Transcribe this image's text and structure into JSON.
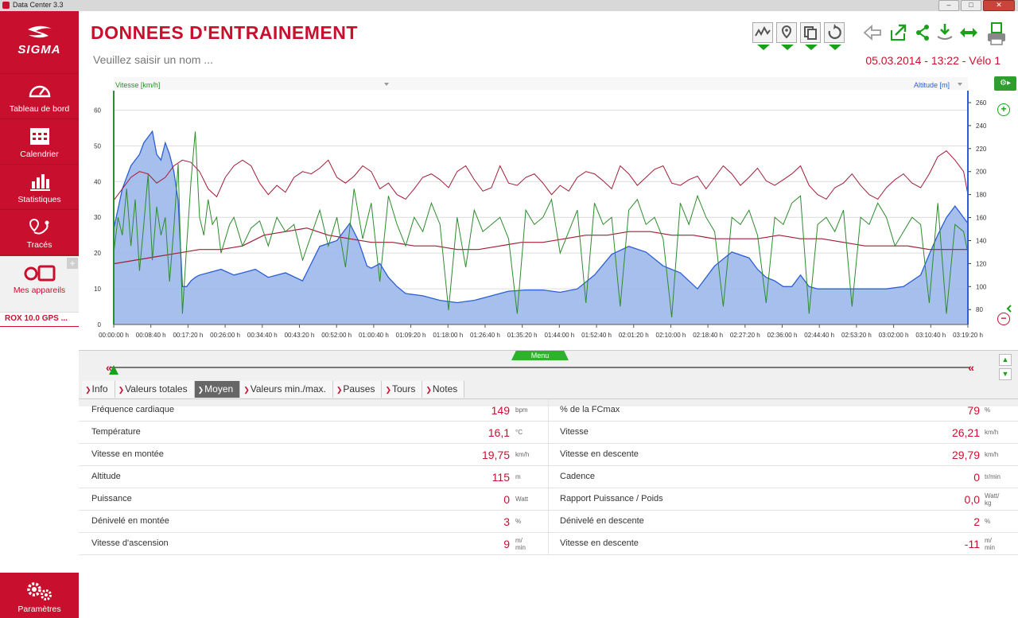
{
  "window": {
    "title": "Data Center 3.3"
  },
  "sidebar": {
    "logo": "SIGMA",
    "items": [
      {
        "label": "Tableau de bord",
        "icon": "speedometer-icon"
      },
      {
        "label": "Calendrier",
        "icon": "calendar-icon"
      },
      {
        "label": "Statistiques",
        "icon": "bar-chart-icon"
      },
      {
        "label": "Tracés",
        "icon": "route-pin-icon"
      }
    ],
    "devices_label": "Mes appareils",
    "device": "ROX 10.0 GPS ...",
    "settings_label": "Paramètres"
  },
  "header": {
    "title": "DONNEES D'ENTRAINEMENT",
    "name_placeholder": "Veuillez saisir un nom ...",
    "session": "05.03.2014 - 13:22 - Vélo 1"
  },
  "chart": {
    "menu_label": "Menu",
    "left_axis_label": "Vitesse [km/h]",
    "right_axis_label": "Altitude [m]"
  },
  "chart_data": {
    "type": "line",
    "x_tick_labels": [
      "00:00:00 h",
      "00:08:40 h",
      "00:17:20 h",
      "00:26:00 h",
      "00:34:40 h",
      "00:43:20 h",
      "00:52:00 h",
      "01:00:40 h",
      "01:09:20 h",
      "01:18:00 h",
      "01:26:40 h",
      "01:35:20 h",
      "01:44:00 h",
      "01:52:40 h",
      "02:01:20 h",
      "02:10:00 h",
      "02:18:40 h",
      "02:27:20 h",
      "02:36:00 h",
      "02:44:40 h",
      "02:53:20 h",
      "03:02:00 h",
      "03:10:40 h",
      "03:19:20 h"
    ],
    "ylim_left": [
      0,
      65
    ],
    "yticks_left": [
      0,
      10,
      20,
      30,
      40,
      50,
      60
    ],
    "ylim_right": [
      67,
      269
    ],
    "yticks_right": [
      80,
      100,
      120,
      140,
      160,
      180,
      200,
      220,
      240,
      260
    ],
    "series": [
      {
        "name": "Altitude [m]",
        "axis": "right",
        "color": "#2c5ed6",
        "fill": "#9db8ea",
        "x_min": [
          0,
          2,
          4,
          6,
          7,
          8,
          9,
          10,
          11,
          12,
          13,
          14,
          15,
          16,
          17,
          18,
          19,
          20,
          22,
          25,
          28,
          30,
          33,
          36,
          40,
          44,
          48,
          52,
          55,
          57,
          59,
          60,
          62,
          64,
          66,
          68,
          72,
          76,
          80,
          84,
          88,
          92,
          96,
          100,
          104,
          108,
          112,
          116,
          120,
          124,
          128,
          132,
          136,
          140,
          144,
          148,
          150,
          152,
          154,
          156,
          158,
          160,
          162,
          164,
          166,
          168,
          172,
          176,
          180,
          184,
          188,
          190,
          192,
          194,
          196,
          197,
          198,
          199
        ],
        "values": [
          150,
          185,
          205,
          215,
          225,
          230,
          235,
          215,
          210,
          225,
          215,
          200,
          175,
          100,
          100,
          105,
          108,
          110,
          112,
          115,
          110,
          112,
          115,
          108,
          112,
          105,
          135,
          140,
          155,
          140,
          118,
          116,
          120,
          108,
          100,
          94,
          92,
          88,
          86,
          88,
          92,
          96,
          97,
          97,
          95,
          98,
          110,
          128,
          135,
          130,
          118,
          112,
          98,
          118,
          130,
          125,
          115,
          108,
          105,
          100,
          100,
          110,
          100,
          98,
          98,
          98,
          98,
          98,
          98,
          100,
          110,
          128,
          145,
          160,
          170,
          165,
          160,
          155
        ]
      },
      {
        "name": "Vitesse [km/h]",
        "axis": "left",
        "color": "#2e8b2e",
        "x_min": [
          0,
          1,
          2,
          3,
          4,
          5,
          6,
          7,
          8,
          9,
          10,
          11,
          12,
          13,
          14,
          15,
          16,
          17,
          18,
          19,
          20,
          21,
          22,
          23,
          24,
          25,
          26,
          27,
          28,
          30,
          32,
          34,
          36,
          38,
          40,
          42,
          44,
          46,
          48,
          50,
          52,
          54,
          56,
          58,
          60,
          62,
          64,
          66,
          68,
          70,
          72,
          74,
          76,
          78,
          80,
          82,
          84,
          86,
          88,
          90,
          92,
          94,
          96,
          98,
          100,
          102,
          104,
          106,
          108,
          110,
          112,
          114,
          116,
          118,
          120,
          122,
          124,
          126,
          128,
          130,
          132,
          134,
          136,
          138,
          140,
          142,
          144,
          146,
          148,
          150,
          152,
          154,
          156,
          158,
          160,
          162,
          164,
          166,
          168,
          170,
          172,
          174,
          176,
          178,
          180,
          182,
          184,
          186,
          188,
          190,
          192,
          194,
          196,
          198,
          199
        ],
        "values": [
          20,
          30,
          25,
          38,
          22,
          35,
          15,
          28,
          42,
          18,
          33,
          25,
          30,
          12,
          27,
          45,
          3,
          22,
          40,
          54,
          30,
          25,
          35,
          28,
          30,
          20,
          24,
          28,
          30,
          22,
          27,
          29,
          22,
          30,
          26,
          28,
          18,
          25,
          32,
          22,
          30,
          16,
          38,
          24,
          34,
          12,
          36,
          28,
          22,
          30,
          26,
          34,
          28,
          4,
          30,
          16,
          32,
          26,
          28,
          30,
          24,
          3,
          32,
          28,
          30,
          35,
          20,
          26,
          32,
          6,
          34,
          28,
          30,
          5,
          32,
          35,
          28,
          30,
          24,
          2,
          34,
          28,
          36,
          30,
          26,
          5,
          30,
          28,
          32,
          25,
          6,
          30,
          28,
          34,
          36,
          3,
          28,
          30,
          26,
          32,
          5,
          30,
          28,
          34,
          30,
          22,
          26,
          30,
          28,
          6,
          34,
          3,
          28,
          26,
          20
        ]
      },
      {
        "name": "Fréquence cardiaque",
        "axis": "right",
        "color": "#a31c36",
        "x_min": [
          0,
          2,
          4,
          6,
          8,
          10,
          12,
          14,
          16,
          18,
          20,
          22,
          24,
          26,
          28,
          30,
          32,
          34,
          36,
          38,
          40,
          42,
          44,
          46,
          48,
          50,
          52,
          54,
          56,
          58,
          60,
          62,
          64,
          66,
          68,
          70,
          72,
          74,
          76,
          78,
          80,
          82,
          84,
          86,
          88,
          90,
          92,
          94,
          96,
          98,
          100,
          102,
          104,
          106,
          108,
          110,
          112,
          114,
          116,
          118,
          120,
          122,
          124,
          126,
          128,
          130,
          132,
          134,
          136,
          138,
          140,
          142,
          144,
          146,
          148,
          150,
          152,
          154,
          156,
          158,
          160,
          162,
          164,
          166,
          168,
          170,
          172,
          174,
          176,
          178,
          180,
          182,
          184,
          186,
          188,
          190,
          192,
          194,
          196,
          198,
          199
        ],
        "values": [
          175,
          185,
          195,
          200,
          198,
          190,
          195,
          205,
          210,
          208,
          200,
          185,
          178,
          195,
          205,
          210,
          205,
          190,
          180,
          188,
          182,
          195,
          200,
          198,
          203,
          210,
          195,
          190,
          196,
          205,
          200,
          185,
          190,
          180,
          176,
          185,
          195,
          198,
          193,
          186,
          200,
          205,
          193,
          183,
          186,
          205,
          190,
          188,
          195,
          198,
          190,
          180,
          188,
          183,
          195,
          200,
          198,
          192,
          185,
          205,
          198,
          188,
          195,
          202,
          205,
          190,
          188,
          193,
          196,
          185,
          195,
          205,
          198,
          188,
          195,
          203,
          192,
          188,
          193,
          198,
          205,
          188,
          180,
          176,
          186,
          190,
          198,
          188,
          180,
          176,
          186,
          193,
          198,
          190,
          186,
          198,
          213,
          218,
          210,
          200,
          180
        ]
      },
      {
        "name": "Température",
        "axis": "left",
        "color": "#a31c36",
        "x_min": [
          0,
          5,
          10,
          15,
          20,
          25,
          30,
          35,
          40,
          45,
          50,
          55,
          60,
          65,
          70,
          75,
          80,
          85,
          90,
          95,
          100,
          105,
          110,
          115,
          120,
          125,
          130,
          135,
          140,
          145,
          150,
          155,
          160,
          165,
          170,
          175,
          180,
          185,
          190,
          195,
          199
        ],
        "values": [
          17,
          18,
          19,
          20,
          21,
          21,
          22,
          25,
          26,
          27,
          25,
          24,
          23,
          23,
          22,
          22,
          21,
          21,
          22,
          23,
          23,
          24,
          25,
          25,
          26,
          26,
          25,
          25,
          24,
          24,
          24,
          25,
          24,
          24,
          23,
          22,
          22,
          22,
          21,
          21,
          21
        ]
      }
    ]
  },
  "tabs": [
    {
      "label": "Info",
      "active": false
    },
    {
      "label": "Valeurs totales",
      "active": false
    },
    {
      "label": "Moyen",
      "active": true
    },
    {
      "label": "Valeurs min./max.",
      "active": false
    },
    {
      "label": "Pauses",
      "active": false
    },
    {
      "label": "Tours",
      "active": false
    },
    {
      "label": "Notes",
      "active": false
    }
  ],
  "stats": {
    "rows": [
      {
        "left": {
          "label": "Fréquence cardiaque",
          "value": "149",
          "unit": "bpm"
        },
        "right": {
          "label": "% de la FCmax",
          "value": "79",
          "unit": "%"
        }
      },
      {
        "left": {
          "label": "Température",
          "value": "16,1",
          "unit": "°C"
        },
        "right": {
          "label": "Vitesse",
          "value": "26,21",
          "unit": "km/h"
        }
      },
      {
        "left": {
          "label": "Vitesse en montée",
          "value": "19,75",
          "unit": "km/h"
        },
        "right": {
          "label": "Vitesse en descente",
          "value": "29,79",
          "unit": "km/h"
        }
      },
      {
        "left": {
          "label": "Altitude",
          "value": "115",
          "unit": "m"
        },
        "right": {
          "label": "Cadence",
          "value": "0",
          "unit": "tr/min"
        }
      },
      {
        "left": {
          "label": "Puissance",
          "value": "0",
          "unit": "Watt"
        },
        "right": {
          "label": "Rapport Puissance / Poids",
          "value": "0,0",
          "unit": "Watt/",
          "unit2": "kg"
        }
      },
      {
        "left": {
          "label": "Dénivelé en montée",
          "value": "3",
          "unit": "%"
        },
        "right": {
          "label": "Dénivelé en descente",
          "value": "2",
          "unit": "%"
        }
      },
      {
        "left": {
          "label": "Vitesse d'ascension",
          "value": "9",
          "unit": "m/",
          "unit2": "min"
        },
        "right": {
          "label": "Vitesse en descente",
          "value": "-11",
          "unit": "m/",
          "unit2": "min"
        }
      }
    ]
  }
}
